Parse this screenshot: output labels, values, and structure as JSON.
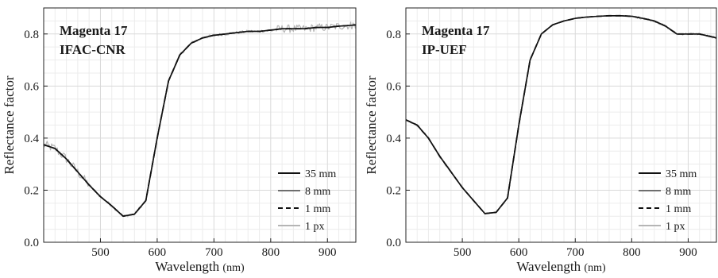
{
  "chart_data": [
    {
      "type": "line",
      "title": "",
      "annotations": [
        "Magenta 17",
        "IFAC-CNR"
      ],
      "xlabel": "Wavelength",
      "xunit": "(nm)",
      "ylabel": "Reflectance factor",
      "xlim": [
        400,
        950
      ],
      "ylim": [
        0.0,
        0.9
      ],
      "xticks": [
        500,
        600,
        700,
        800,
        900
      ],
      "xtick_labels": [
        "500",
        "600",
        "700",
        "800",
        "900"
      ],
      "yticks": [
        0.0,
        0.2,
        0.4,
        0.6,
        0.8
      ],
      "ytick_labels": [
        "0.0",
        "0.2",
        "0.4",
        "0.6",
        "0.8"
      ],
      "grid": true,
      "legend_position": "bottom-right",
      "x": [
        400,
        420,
        440,
        460,
        480,
        500,
        520,
        540,
        560,
        580,
        600,
        620,
        640,
        660,
        680,
        700,
        720,
        740,
        760,
        780,
        800,
        820,
        840,
        860,
        880,
        900,
        920,
        940,
        950
      ],
      "series": [
        {
          "name": "35 mm",
          "color": "#111111",
          "dash": "solid",
          "values": [
            0.375,
            0.36,
            0.32,
            0.27,
            0.22,
            0.175,
            0.14,
            0.1,
            0.108,
            0.16,
            0.4,
            0.62,
            0.72,
            0.765,
            0.785,
            0.795,
            0.8,
            0.805,
            0.81,
            0.81,
            0.815,
            0.82,
            0.82,
            0.82,
            0.825,
            0.825,
            0.83,
            0.833,
            0.835
          ]
        },
        {
          "name": "8 mm",
          "color": "#6e6e6e",
          "dash": "solid",
          "values": [
            0.375,
            0.36,
            0.32,
            0.27,
            0.22,
            0.175,
            0.14,
            0.1,
            0.108,
            0.16,
            0.4,
            0.62,
            0.72,
            0.765,
            0.785,
            0.795,
            0.8,
            0.805,
            0.81,
            0.81,
            0.815,
            0.82,
            0.82,
            0.82,
            0.825,
            0.825,
            0.83,
            0.833,
            0.835
          ]
        },
        {
          "name": "1 mm",
          "color": "#111111",
          "dash": "dashed",
          "values": [
            0.375,
            0.36,
            0.32,
            0.27,
            0.22,
            0.175,
            0.14,
            0.1,
            0.108,
            0.16,
            0.4,
            0.62,
            0.72,
            0.765,
            0.785,
            0.795,
            0.8,
            0.805,
            0.81,
            0.81,
            0.815,
            0.82,
            0.82,
            0.82,
            0.825,
            0.825,
            0.83,
            0.833,
            0.835
          ]
        },
        {
          "name": "1 px",
          "color": "#b5b5b5",
          "dash": "solid",
          "noise": 0.022,
          "values": [
            0.375,
            0.36,
            0.32,
            0.27,
            0.22,
            0.175,
            0.14,
            0.1,
            0.108,
            0.16,
            0.4,
            0.62,
            0.72,
            0.765,
            0.785,
            0.795,
            0.8,
            0.805,
            0.81,
            0.81,
            0.815,
            0.82,
            0.82,
            0.82,
            0.825,
            0.825,
            0.83,
            0.833,
            0.835
          ]
        }
      ]
    },
    {
      "type": "line",
      "title": "",
      "annotations": [
        "Magenta 17",
        "IP-UEF"
      ],
      "xlabel": "Wavelength",
      "xunit": "(nm)",
      "ylabel": "Reflectance factor",
      "xlim": [
        400,
        950
      ],
      "ylim": [
        0.0,
        0.9
      ],
      "xticks": [
        500,
        600,
        700,
        800,
        900
      ],
      "xtick_labels": [
        "500",
        "600",
        "700",
        "800",
        "900"
      ],
      "yticks": [
        0.0,
        0.2,
        0.4,
        0.6,
        0.8
      ],
      "ytick_labels": [
        "0.0",
        "0.2",
        "0.4",
        "0.6",
        "0.8"
      ],
      "grid": true,
      "legend_position": "bottom-right",
      "x": [
        400,
        420,
        440,
        460,
        480,
        500,
        520,
        540,
        560,
        580,
        600,
        620,
        640,
        660,
        680,
        700,
        720,
        740,
        760,
        780,
        800,
        820,
        840,
        860,
        880,
        900,
        920,
        940,
        950
      ],
      "series": [
        {
          "name": "35 mm",
          "color": "#111111",
          "dash": "solid",
          "values": [
            0.47,
            0.45,
            0.4,
            0.33,
            0.27,
            0.21,
            0.16,
            0.11,
            0.115,
            0.17,
            0.45,
            0.7,
            0.8,
            0.835,
            0.85,
            0.86,
            0.865,
            0.868,
            0.87,
            0.87,
            0.868,
            0.86,
            0.85,
            0.83,
            0.8,
            0.8,
            0.8,
            0.79,
            0.785
          ]
        },
        {
          "name": "8 mm",
          "color": "#6e6e6e",
          "dash": "solid",
          "values": [
            0.47,
            0.45,
            0.4,
            0.33,
            0.27,
            0.21,
            0.16,
            0.11,
            0.115,
            0.17,
            0.45,
            0.7,
            0.8,
            0.835,
            0.85,
            0.86,
            0.865,
            0.868,
            0.87,
            0.87,
            0.868,
            0.86,
            0.85,
            0.83,
            0.8,
            0.8,
            0.8,
            0.79,
            0.785
          ]
        },
        {
          "name": "1 mm",
          "color": "#111111",
          "dash": "dashed",
          "values": [
            0.47,
            0.45,
            0.4,
            0.33,
            0.27,
            0.21,
            0.16,
            0.11,
            0.115,
            0.17,
            0.45,
            0.7,
            0.8,
            0.835,
            0.85,
            0.86,
            0.865,
            0.868,
            0.87,
            0.87,
            0.868,
            0.86,
            0.85,
            0.83,
            0.8,
            0.8,
            0.8,
            0.79,
            0.785
          ]
        },
        {
          "name": "1 px",
          "color": "#b5b5b5",
          "dash": "solid",
          "noise": 0.006,
          "values": [
            0.47,
            0.45,
            0.4,
            0.33,
            0.27,
            0.21,
            0.16,
            0.11,
            0.115,
            0.17,
            0.45,
            0.7,
            0.8,
            0.835,
            0.85,
            0.86,
            0.865,
            0.868,
            0.87,
            0.87,
            0.868,
            0.86,
            0.85,
            0.83,
            0.8,
            0.8,
            0.8,
            0.79,
            0.785
          ]
        }
      ]
    }
  ]
}
